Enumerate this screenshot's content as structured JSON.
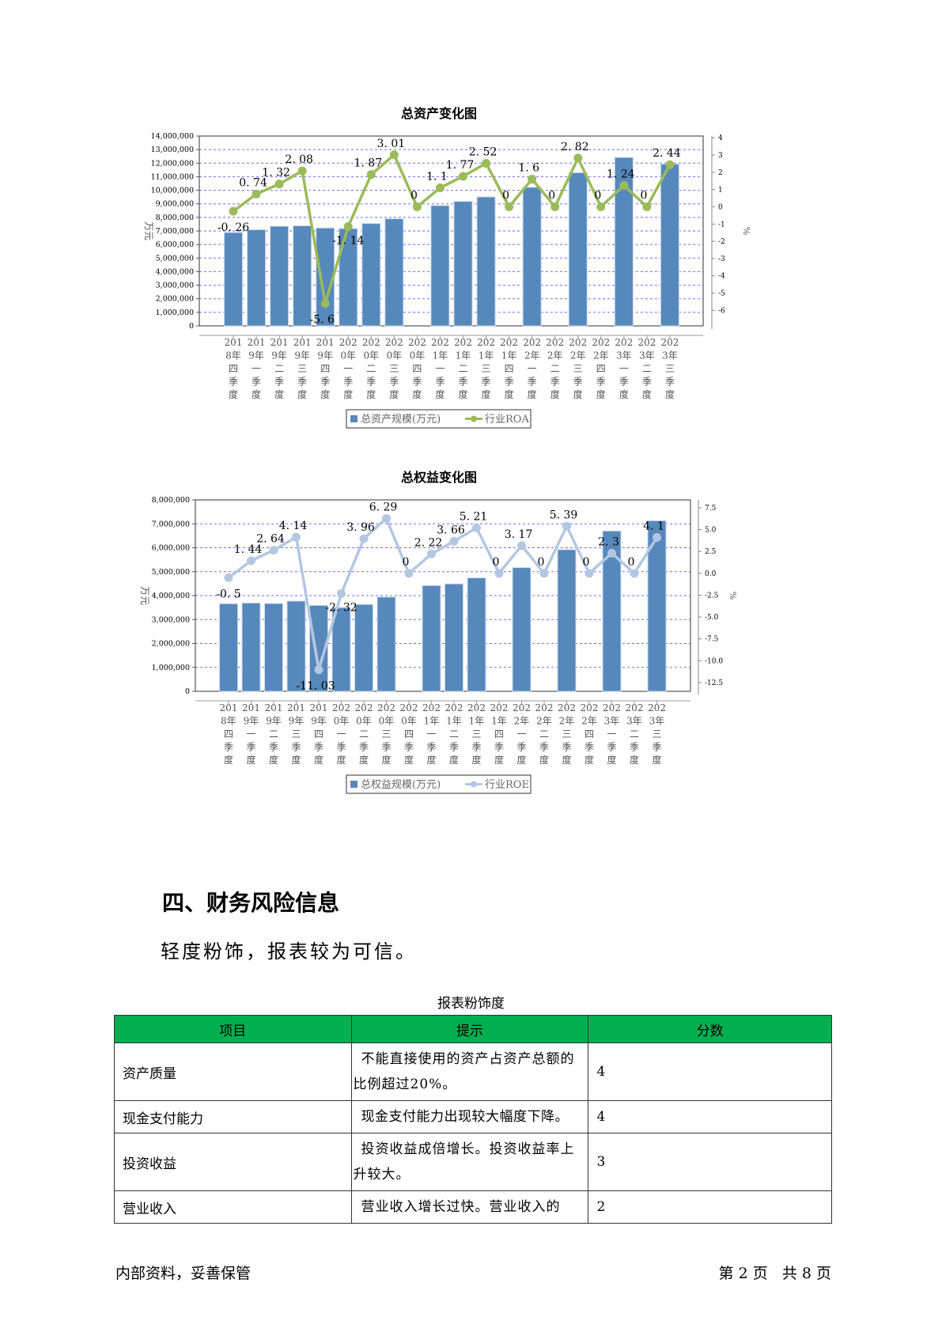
{
  "chart_data": [
    {
      "type": "bar+line",
      "title": "总资产变化图",
      "ylabel": "万元",
      "y2label": "%",
      "categories": [
        "2018年四季度",
        "2019年一季度",
        "2019年二季度",
        "2019年三季度",
        "2019年四季度",
        "2020年一季度",
        "2020年二季度",
        "2020年三季度",
        "2020年四季度",
        "2021年一季度",
        "2021年二季度",
        "2021年三季度",
        "2021年四季度",
        "2022年一季度",
        "2022年二季度",
        "2022年三季度",
        "2022年四季度",
        "2023年一季度",
        "2023年二季度",
        "2023年三季度"
      ],
      "ylim": [
        0,
        14000000
      ],
      "yticks": [
        0,
        1000000,
        2000000,
        3000000,
        4000000,
        5000000,
        6000000,
        7000000,
        8000000,
        9000000,
        10000000,
        11000000,
        12000000,
        13000000,
        14000000
      ],
      "y2lim": [
        -6.9,
        4.1
      ],
      "y2ticks": [
        -6,
        -5,
        -4,
        -3,
        -2,
        -1,
        0,
        1,
        2,
        3,
        4
      ],
      "grid": true,
      "legend_position": "bottom",
      "series": [
        {
          "name": "总资产规模(万元)",
          "type": "bar",
          "color": "#5688bc",
          "values": [
            6890000,
            7090000,
            7350000,
            7380000,
            7220000,
            7180000,
            7550000,
            7900000,
            0,
            8870000,
            9180000,
            9510000,
            0,
            10220000,
            0,
            11300000,
            0,
            12420000,
            0,
            11930000
          ]
        },
        {
          "name": "行业ROA",
          "type": "line",
          "axis": "right",
          "color": "#9bbb59",
          "values": [
            -0.26,
            0.74,
            1.32,
            2.08,
            -5.6,
            -1.14,
            1.87,
            3.01,
            0,
            1.1,
            1.77,
            2.52,
            0,
            1.6,
            0,
            2.82,
            0,
            1.24,
            0,
            2.44
          ]
        }
      ]
    },
    {
      "type": "bar+line",
      "title": "总权益变化图",
      "ylabel": "万元",
      "y2label": "%",
      "categories": [
        "2018年四季度",
        "2019年一季度",
        "2019年二季度",
        "2019年三季度",
        "2019年四季度",
        "2020年一季度",
        "2020年二季度",
        "2020年三季度",
        "2020年四季度",
        "2021年一季度",
        "2021年二季度",
        "2021年三季度",
        "2021年四季度",
        "2022年一季度",
        "2022年二季度",
        "2022年三季度",
        "2022年四季度",
        "2023年一季度",
        "2023年二季度",
        "2023年三季度"
      ],
      "ylim": [
        0,
        8000000
      ],
      "yticks": [
        0,
        1000000,
        2000000,
        3000000,
        4000000,
        5000000,
        6000000,
        7000000,
        8000000
      ],
      "y2lim": [
        -13.5,
        8.4
      ],
      "y2ticks": [
        -12.5,
        -10.0,
        -7.5,
        -5.0,
        -2.5,
        0.0,
        2.5,
        5.0,
        7.5
      ],
      "grid": true,
      "legend_position": "bottom",
      "series": [
        {
          "name": "总权益规模(万元)",
          "type": "bar",
          "color": "#5688bc",
          "values": [
            3660000,
            3690000,
            3670000,
            3770000,
            3590000,
            3500000,
            3630000,
            3940000,
            0,
            4420000,
            4490000,
            4740000,
            0,
            5170000,
            0,
            5920000,
            0,
            6700000,
            0,
            7130000
          ]
        },
        {
          "name": "行业ROE",
          "type": "line",
          "axis": "right",
          "color": "#b4c7e2",
          "values": [
            -0.5,
            1.44,
            2.64,
            4.14,
            -11.03,
            -2.32,
            3.96,
            6.29,
            0,
            2.22,
            3.66,
            5.21,
            0,
            3.17,
            0,
            5.39,
            0,
            2.3,
            0,
            4.1
          ]
        }
      ]
    }
  ],
  "section": {
    "heading": "四、财务风险信息",
    "summary": "轻度粉饰，报表较为可信。"
  },
  "table": {
    "caption": "报表粉饰度",
    "headers": [
      "项目",
      "提示",
      "分数"
    ],
    "header_color": "#00b050",
    "rows": [
      [
        "资产质量",
        "不能直接使用的资产占资产总额的比例超过20%。",
        "4"
      ],
      [
        "现金支付能力",
        "现金支付能力出现较大幅度下降。",
        "4"
      ],
      [
        "投资收益",
        "投资收益成倍增长。投资收益率上升较大。",
        "3"
      ],
      [
        "营业收入",
        "营业收入增长过快。营业收入的",
        "2"
      ]
    ]
  },
  "footer": {
    "left": "内部资料，妥善保管",
    "right": "第 2 页   共 8 页"
  }
}
